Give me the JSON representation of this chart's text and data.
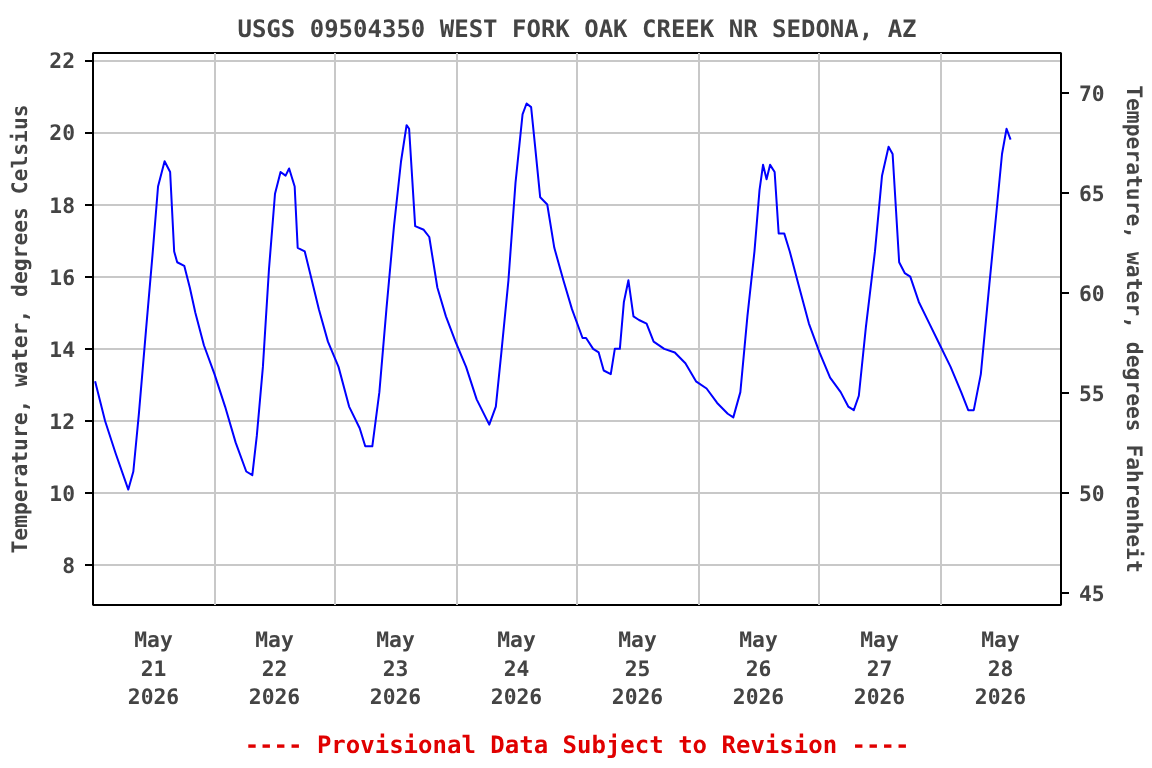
{
  "chart_data": {
    "type": "line",
    "title": "USGS 09504350 WEST FORK OAK CREEK NR SEDONA, AZ",
    "ylabel": "Temperature, water, degrees Celsius",
    "y2label": "Temperature, water, degrees Fahrenheit",
    "annotations": [
      "---- Provisional Data Subject to Revision ----"
    ],
    "grid": true,
    "line_style": "solid",
    "xlim": [
      "2026-05-21T00:00",
      "2026-05-29T00:00"
    ],
    "xticks": [
      {
        "value": "2026-05-21T12:00",
        "label": "May\n21\n2026"
      },
      {
        "value": "2026-05-22T00:00",
        "label": null
      },
      {
        "value": "2026-05-22T12:00",
        "label": "May\n22\n2026"
      },
      {
        "value": "2026-05-23T00:00",
        "label": null
      },
      {
        "value": "2026-05-23T12:00",
        "label": "May\n23\n2026"
      },
      {
        "value": "2026-05-24T00:00",
        "label": null
      },
      {
        "value": "2026-05-24T12:00",
        "label": "May\n24\n2026"
      },
      {
        "value": "2026-05-25T00:00",
        "label": null
      },
      {
        "value": "2026-05-25T12:00",
        "label": "May\n25\n2026"
      },
      {
        "value": "2026-05-26T00:00",
        "label": null
      },
      {
        "value": "2026-05-26T12:00",
        "label": "May\n26\n2026"
      },
      {
        "value": "2026-05-27T00:00",
        "label": null
      },
      {
        "value": "2026-05-27T12:00",
        "label": "May\n27\n2026"
      },
      {
        "value": "2026-05-28T00:00",
        "label": null
      },
      {
        "value": "2026-05-28T12:00",
        "label": "May\n28\n2026"
      }
    ],
    "ylim": [
      6.9,
      22.2
    ],
    "yticks": [
      8,
      10,
      12,
      14,
      16,
      18,
      20,
      22
    ],
    "y2lim": [
      44.4,
      72.0
    ],
    "y2ticks": [
      45,
      50,
      55,
      60,
      65,
      70
    ],
    "series": [
      {
        "color": "#0000ff",
        "x": [
          "2026-05-21T00:25",
          "2026-05-21T02:24",
          "2026-05-21T04:30",
          "2026-05-21T07:00",
          "2026-05-21T08:00",
          "2026-05-21T09:06",
          "2026-05-21T10:30",
          "2026-05-21T11:48",
          "2026-05-21T12:54",
          "2026-05-21T14:12",
          "2026-05-21T15:18",
          "2026-05-21T16:06",
          "2026-05-21T16:42",
          "2026-05-21T18:06",
          "2026-05-21T19:12",
          "2026-05-21T20:18",
          "2026-05-21T22:00",
          "2026-05-22T00:06",
          "2026-05-22T02:12",
          "2026-05-22T04:18",
          "2026-05-22T06:24",
          "2026-05-22T07:36",
          "2026-05-22T08:30",
          "2026-05-22T09:42",
          "2026-05-22T10:54",
          "2026-05-22T12:06",
          "2026-05-22T13:12",
          "2026-05-22T14:12",
          "2026-05-22T14:54",
          "2026-05-22T16:00",
          "2026-05-22T16:36",
          "2026-05-22T18:00",
          "2026-05-22T19:24",
          "2026-05-22T20:48",
          "2026-05-22T22:36",
          "2026-05-23T00:42",
          "2026-05-23T02:48",
          "2026-05-23T04:54",
          "2026-05-23T06:00",
          "2026-05-23T07:24",
          "2026-05-23T08:48",
          "2026-05-23T10:12",
          "2026-05-23T11:42",
          "2026-05-23T13:06",
          "2026-05-23T14:12",
          "2026-05-23T14:42",
          "2026-05-23T15:54",
          "2026-05-23T17:36",
          "2026-05-23T18:42",
          "2026-05-23T20:18",
          "2026-05-23T22:00",
          "2026-05-23T23:54",
          "2026-05-24T02:00",
          "2026-05-24T04:06",
          "2026-05-24T06:36",
          "2026-05-24T07:54",
          "2026-05-24T09:00",
          "2026-05-24T10:24",
          "2026-05-24T11:48",
          "2026-05-24T13:12",
          "2026-05-24T14:00",
          "2026-05-24T14:54",
          "2026-05-24T15:42",
          "2026-05-24T16:42",
          "2026-05-24T18:06",
          "2026-05-24T19:30",
          "2026-05-24T21:18",
          "2026-05-24T23:00",
          "2026-05-25T01:06",
          "2026-05-25T01:48",
          "2026-05-25T03:12",
          "2026-05-25T04:18",
          "2026-05-25T05:18",
          "2026-05-25T06:42",
          "2026-05-25T07:30",
          "2026-05-25T08:30",
          "2026-05-25T09:18",
          "2026-05-25T10:12",
          "2026-05-25T11:12",
          "2026-05-25T12:18",
          "2026-05-25T13:48",
          "2026-05-25T15:12",
          "2026-05-25T17:18",
          "2026-05-25T19:24",
          "2026-05-25T21:30",
          "2026-05-25T23:36",
          "2026-05-26T01:42",
          "2026-05-26T03:48",
          "2026-05-26T05:54",
          "2026-05-26T07:00",
          "2026-05-26T08:24",
          "2026-05-26T09:48",
          "2026-05-26T11:12",
          "2026-05-26T12:12",
          "2026-05-26T12:54",
          "2026-05-26T13:36",
          "2026-05-26T14:18",
          "2026-05-26T15:12",
          "2026-05-26T16:00",
          "2026-05-26T17:06",
          "2026-05-26T18:12",
          "2026-05-26T19:54",
          "2026-05-26T22:00",
          "2026-05-27T00:06",
          "2026-05-27T02:12",
          "2026-05-27T04:18",
          "2026-05-27T05:48",
          "2026-05-27T06:54",
          "2026-05-27T07:54",
          "2026-05-27T09:18",
          "2026-05-27T11:06",
          "2026-05-27T12:30",
          "2026-05-27T13:48",
          "2026-05-27T14:36",
          "2026-05-27T15:54",
          "2026-05-27T17:00",
          "2026-05-27T18:06",
          "2026-05-27T19:48",
          "2026-05-27T21:54",
          "2026-05-28T00:00",
          "2026-05-28T02:06",
          "2026-05-28T04:12",
          "2026-05-28T05:36",
          "2026-05-28T06:42",
          "2026-05-28T08:06",
          "2026-05-28T09:48",
          "2026-05-28T11:12",
          "2026-05-28T12:18",
          "2026-05-28T13:12",
          "2026-05-28T14:00"
        ],
        "values": [
          13.1,
          12.0,
          11.1,
          10.1,
          10.6,
          12.2,
          14.5,
          16.6,
          18.5,
          19.2,
          18.9,
          16.7,
          16.4,
          16.3,
          15.7,
          15.0,
          14.1,
          13.3,
          12.4,
          11.4,
          10.6,
          10.5,
          11.6,
          13.5,
          16.2,
          18.3,
          18.9,
          18.8,
          19.0,
          18.5,
          16.8,
          16.7,
          15.9,
          15.1,
          14.2,
          13.5,
          12.4,
          11.8,
          11.3,
          11.3,
          12.8,
          15.1,
          17.4,
          19.2,
          20.2,
          20.1,
          17.4,
          17.3,
          17.1,
          15.7,
          14.9,
          14.2,
          13.5,
          12.6,
          11.9,
          12.4,
          13.9,
          15.9,
          18.6,
          20.5,
          20.8,
          20.7,
          19.6,
          18.2,
          18.0,
          16.8,
          15.9,
          15.1,
          14.3,
          14.3,
          14.0,
          13.9,
          13.4,
          13.3,
          14.0,
          14.0,
          15.3,
          15.9,
          14.9,
          14.8,
          14.7,
          14.2,
          14.0,
          13.9,
          13.6,
          13.1,
          12.9,
          12.5,
          12.2,
          12.1,
          12.8,
          14.9,
          16.7,
          18.4,
          19.1,
          18.7,
          19.1,
          18.9,
          17.2,
          17.2,
          16.7,
          15.8,
          14.7,
          13.9,
          13.2,
          12.8,
          12.4,
          12.3,
          12.7,
          14.6,
          16.7,
          18.8,
          19.6,
          19.4,
          16.4,
          16.1,
          16.0,
          15.3,
          14.7,
          14.1,
          13.5,
          12.8,
          12.3,
          12.3,
          13.3,
          15.8,
          17.8,
          19.4,
          20.1,
          19.8
        ]
      }
    ]
  }
}
